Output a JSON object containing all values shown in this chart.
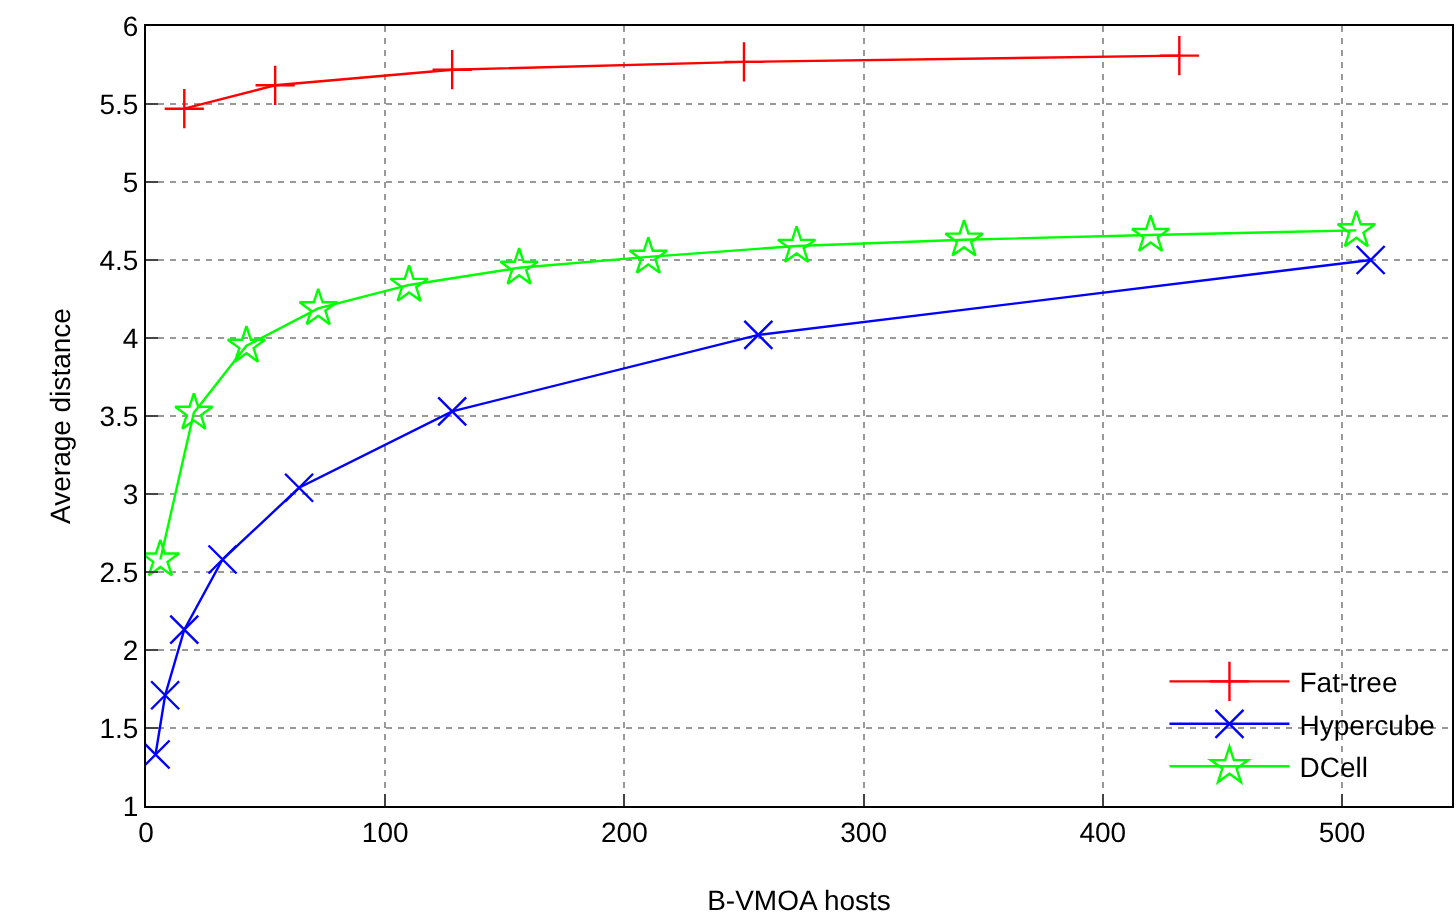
{
  "chart_data": {
    "type": "line",
    "xlabel": "B-VMOA hosts",
    "ylabel": "Average distance",
    "xlim": [
      0,
      546
    ],
    "xticks": [
      0,
      100,
      200,
      300,
      400,
      500
    ],
    "ylim": [
      1,
      6
    ],
    "yticks": [
      1,
      1.5,
      2,
      2.5,
      3,
      3.5,
      4,
      4.5,
      5,
      5.5,
      6
    ],
    "grid": true,
    "legend": "bottom right",
    "line_style": "solid",
    "series": [
      {
        "name": "Fat-tree",
        "color": "#ff0000",
        "marker": "cross",
        "x": [
          16,
          54,
          128,
          250,
          432
        ],
        "values": [
          5.47,
          5.62,
          5.72,
          5.77,
          5.81
        ]
      },
      {
        "name": "Hypercube",
        "color": "#0000ff",
        "marker": "x",
        "x": [
          4,
          8,
          16,
          32,
          64,
          128,
          256,
          512
        ],
        "values": [
          1.33,
          1.71,
          2.13,
          2.58,
          3.04,
          3.53,
          4.02,
          4.5
        ]
      },
      {
        "name": "DCell",
        "color": "#00ff00",
        "marker": "star",
        "x": [
          6,
          20,
          42,
          72,
          110,
          156,
          210,
          272,
          342,
          420,
          506
        ],
        "values": [
          2.58,
          3.52,
          3.95,
          4.19,
          4.34,
          4.45,
          4.52,
          4.59,
          4.63,
          4.66,
          4.69
        ]
      }
    ]
  }
}
